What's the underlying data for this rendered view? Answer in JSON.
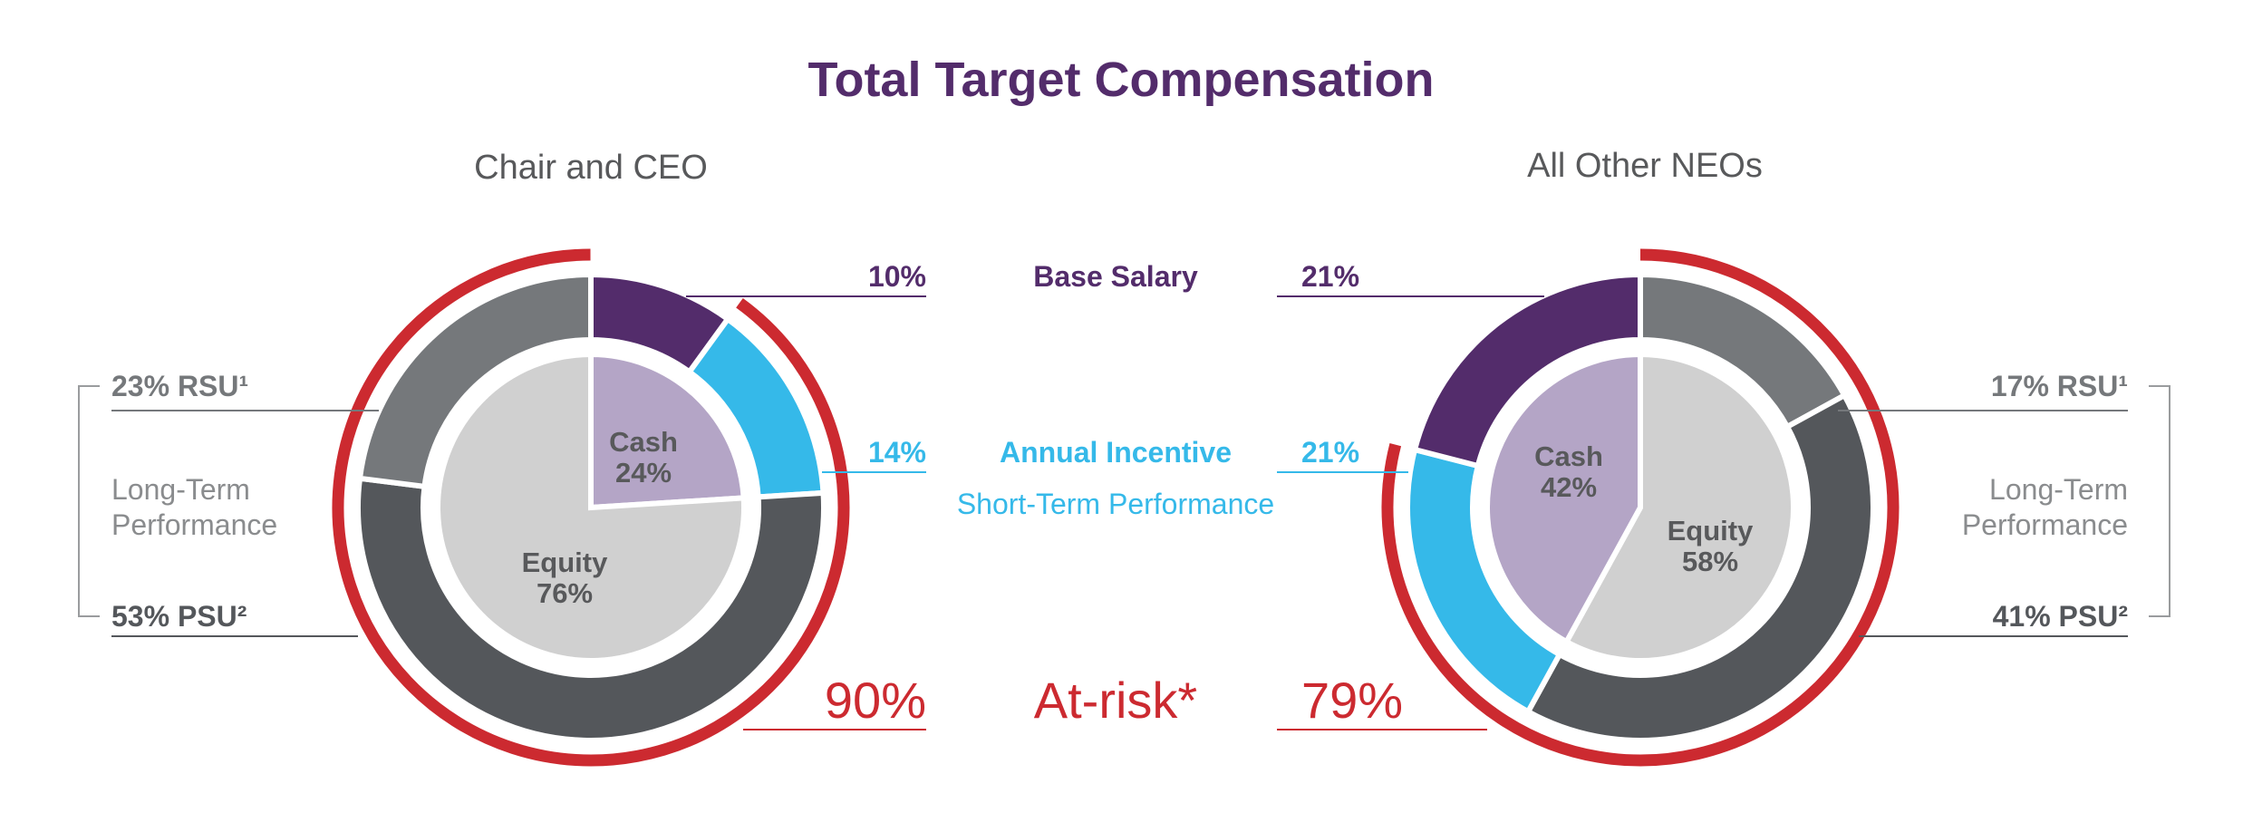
{
  "title": "Total Target Compensation",
  "colors": {
    "base_salary": "#532c6b",
    "annual_incentive": "#35b9e9",
    "rsu": "#75787b",
    "psu": "#54575b",
    "cash": "#b4a5c6",
    "equity": "#d0d0d0",
    "at_risk": "#cc2a30",
    "text": "#58595b"
  },
  "center_labels": {
    "base_salary": "Base Salary",
    "annual_incentive": "Annual Incentive",
    "short_term": "Short-Term Performance",
    "at_risk": "At-risk*"
  },
  "chart_data": [
    {
      "type": "pie",
      "title": "Chair and CEO",
      "outer_ring": [
        {
          "name": "Base Salary",
          "value": 10,
          "label": "10%"
        },
        {
          "name": "Annual Incentive",
          "value": 14,
          "label": "14%"
        },
        {
          "name": "PSU",
          "value": 53,
          "label": "53% PSU²"
        },
        {
          "name": "RSU",
          "value": 23,
          "label": "23% RSU¹"
        }
      ],
      "inner_pie": [
        {
          "name": "Cash",
          "value": 24,
          "label": "24%"
        },
        {
          "name": "Equity",
          "value": 76,
          "label": "76%"
        }
      ],
      "at_risk": {
        "value": 90,
        "label": "90%"
      },
      "long_term_label": [
        "Long-Term",
        "Performance"
      ]
    },
    {
      "type": "pie",
      "title": "All Other NEOs",
      "outer_ring": [
        {
          "name": "RSU",
          "value": 17,
          "label": "17% RSU¹"
        },
        {
          "name": "PSU",
          "value": 41,
          "label": "41% PSU²"
        },
        {
          "name": "Annual Incentive",
          "value": 21,
          "label": "21%"
        },
        {
          "name": "Base Salary",
          "value": 21,
          "label": "21%"
        }
      ],
      "inner_pie": [
        {
          "name": "Equity",
          "value": 58,
          "label": "58%"
        },
        {
          "name": "Cash",
          "value": 42,
          "label": "42%"
        }
      ],
      "at_risk": {
        "value": 79,
        "label": "79%"
      },
      "long_term_label": [
        "Long-Term",
        "Performance"
      ]
    }
  ]
}
